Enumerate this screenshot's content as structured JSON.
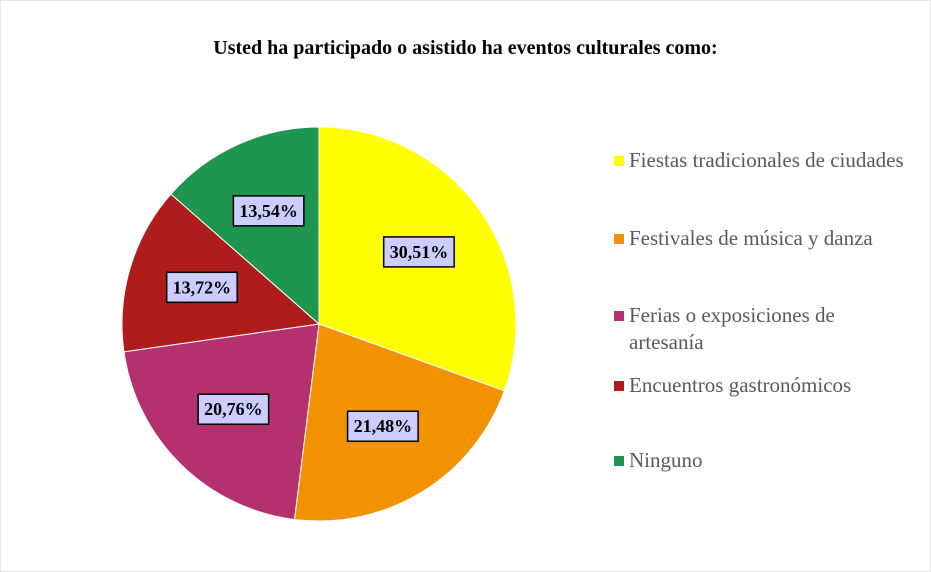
{
  "chart_data": {
    "type": "pie",
    "title": "Usted ha participado o asistido ha eventos culturales como:",
    "categories": [
      "Fiestas tradicionales de ciudades",
      "Festivales de música y danza",
      "Ferias o exposiciones de artesanía",
      "Encuentros gastronómicos",
      "Ninguno"
    ],
    "values": [
      30.51,
      21.48,
      20.76,
      13.72,
      13.54
    ],
    "value_labels": [
      "30,51%",
      "21,48%",
      "20,76%",
      "13,72%",
      "13,54%"
    ],
    "colors": [
      "#ffff00",
      "#f39200",
      "#b4306f",
      "#af1c1c",
      "#1f9650"
    ],
    "legend": "right"
  }
}
